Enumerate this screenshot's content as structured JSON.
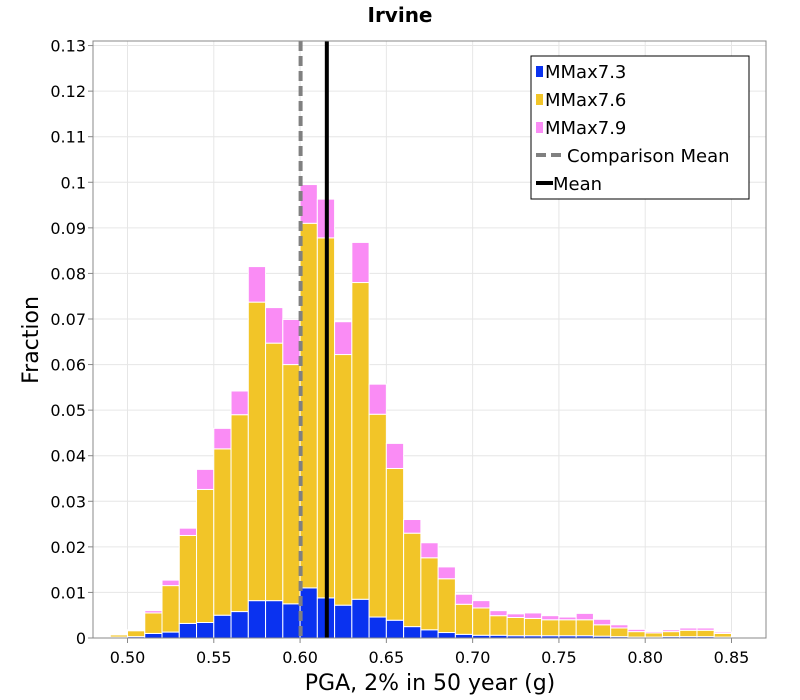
{
  "chart_data": {
    "type": "bar",
    "stacked": true,
    "title": "Irvine",
    "xlabel": "PGA, 2% in 50 year (g)",
    "ylabel": "Fraction",
    "xlim": [
      0.48,
      0.87
    ],
    "ylim": [
      0,
      0.131
    ],
    "bin_width": 0.01,
    "grid": true,
    "legend_position": "top-right",
    "x_ticks": [
      0.5,
      0.55,
      0.6,
      0.65,
      0.7,
      0.75,
      0.8,
      0.85
    ],
    "x_tick_labels": [
      "0.50",
      "0.55",
      "0.60",
      "0.65",
      "0.70",
      "0.75",
      "0.80",
      "0.85"
    ],
    "y_ticks": [
      0,
      0.01,
      0.02,
      0.03,
      0.04,
      0.05,
      0.06,
      0.07,
      0.08,
      0.09,
      0.1,
      0.11,
      0.12,
      0.13
    ],
    "y_tick_labels": [
      "0",
      "0.01",
      "0.02",
      "0.03",
      "0.04",
      "0.05",
      "0.06",
      "0.07",
      "0.08",
      "0.09",
      "0.1",
      "0.11",
      "0.12",
      "0.13"
    ],
    "bin_centers": [
      0.485,
      0.495,
      0.505,
      0.515,
      0.525,
      0.535,
      0.545,
      0.555,
      0.565,
      0.575,
      0.585,
      0.595,
      0.605,
      0.615,
      0.625,
      0.635,
      0.645,
      0.655,
      0.665,
      0.675,
      0.685,
      0.695,
      0.705,
      0.715,
      0.725,
      0.735,
      0.745,
      0.755,
      0.765,
      0.775,
      0.785,
      0.795,
      0.805,
      0.815,
      0.825,
      0.835,
      0.845,
      0.855,
      0.865
    ],
    "series": [
      {
        "name": "MMax7.3",
        "color": "#0a32f0",
        "values": [
          0.0,
          0.0002,
          0.0003,
          0.001,
          0.0013,
          0.0032,
          0.0034,
          0.005,
          0.0058,
          0.0082,
          0.0082,
          0.0075,
          0.011,
          0.0088,
          0.0072,
          0.0085,
          0.0046,
          0.0039,
          0.0025,
          0.0018,
          0.0012,
          0.0008,
          0.0006,
          0.0006,
          0.0005,
          0.0005,
          0.0005,
          0.0005,
          0.0005,
          0.0004,
          0.0003,
          0.0002,
          0.0002,
          0.0003,
          0.0003,
          0.0003,
          0.0002,
          0.0,
          0.0
        ]
      },
      {
        "name": "MMax7.6",
        "color": "#f2c528",
        "values": [
          0.0002,
          0.0005,
          0.0013,
          0.0045,
          0.0102,
          0.0193,
          0.0292,
          0.0365,
          0.0432,
          0.0655,
          0.0565,
          0.0525,
          0.08,
          0.079,
          0.055,
          0.0695,
          0.0445,
          0.0333,
          0.0205,
          0.0158,
          0.0118,
          0.0066,
          0.006,
          0.0043,
          0.004,
          0.0038,
          0.0035,
          0.0035,
          0.0035,
          0.0025,
          0.0019,
          0.0012,
          0.0009,
          0.0011,
          0.0014,
          0.0014,
          0.0008,
          0.0002,
          0.0002
        ]
      },
      {
        "name": "MMax7.9",
        "color": "#fa8cf5",
        "values": [
          0.0,
          0.0001,
          0.0002,
          0.0005,
          0.0012,
          0.0016,
          0.0044,
          0.0045,
          0.0052,
          0.0078,
          0.0078,
          0.0099,
          0.0085,
          0.0085,
          0.0072,
          0.0088,
          0.0066,
          0.0055,
          0.003,
          0.0033,
          0.0026,
          0.0022,
          0.0016,
          0.0011,
          0.0008,
          0.0012,
          0.0009,
          0.0006,
          0.0014,
          0.0012,
          0.0007,
          0.0005,
          0.0003,
          0.0004,
          0.0005,
          0.0005,
          0.0003,
          0.0002,
          0.0
        ]
      }
    ],
    "vertical_lines": [
      {
        "name": "Comparison Mean",
        "x": 0.6003,
        "color": "#808080",
        "style": "dashed"
      },
      {
        "name": "Mean",
        "x": 0.6155,
        "color": "#000000",
        "style": "solid"
      }
    ],
    "legend": [
      {
        "label": "MMax7.3",
        "kind": "patch",
        "color": "#0a32f0"
      },
      {
        "label": "MMax7.6",
        "kind": "patch",
        "color": "#f2c528"
      },
      {
        "label": "MMax7.9",
        "kind": "patch",
        "color": "#fa8cf5"
      },
      {
        "label": "Comparison Mean",
        "kind": "dashed-line",
        "color": "#808080"
      },
      {
        "label": "Mean",
        "kind": "solid-line",
        "color": "#000000"
      }
    ]
  }
}
